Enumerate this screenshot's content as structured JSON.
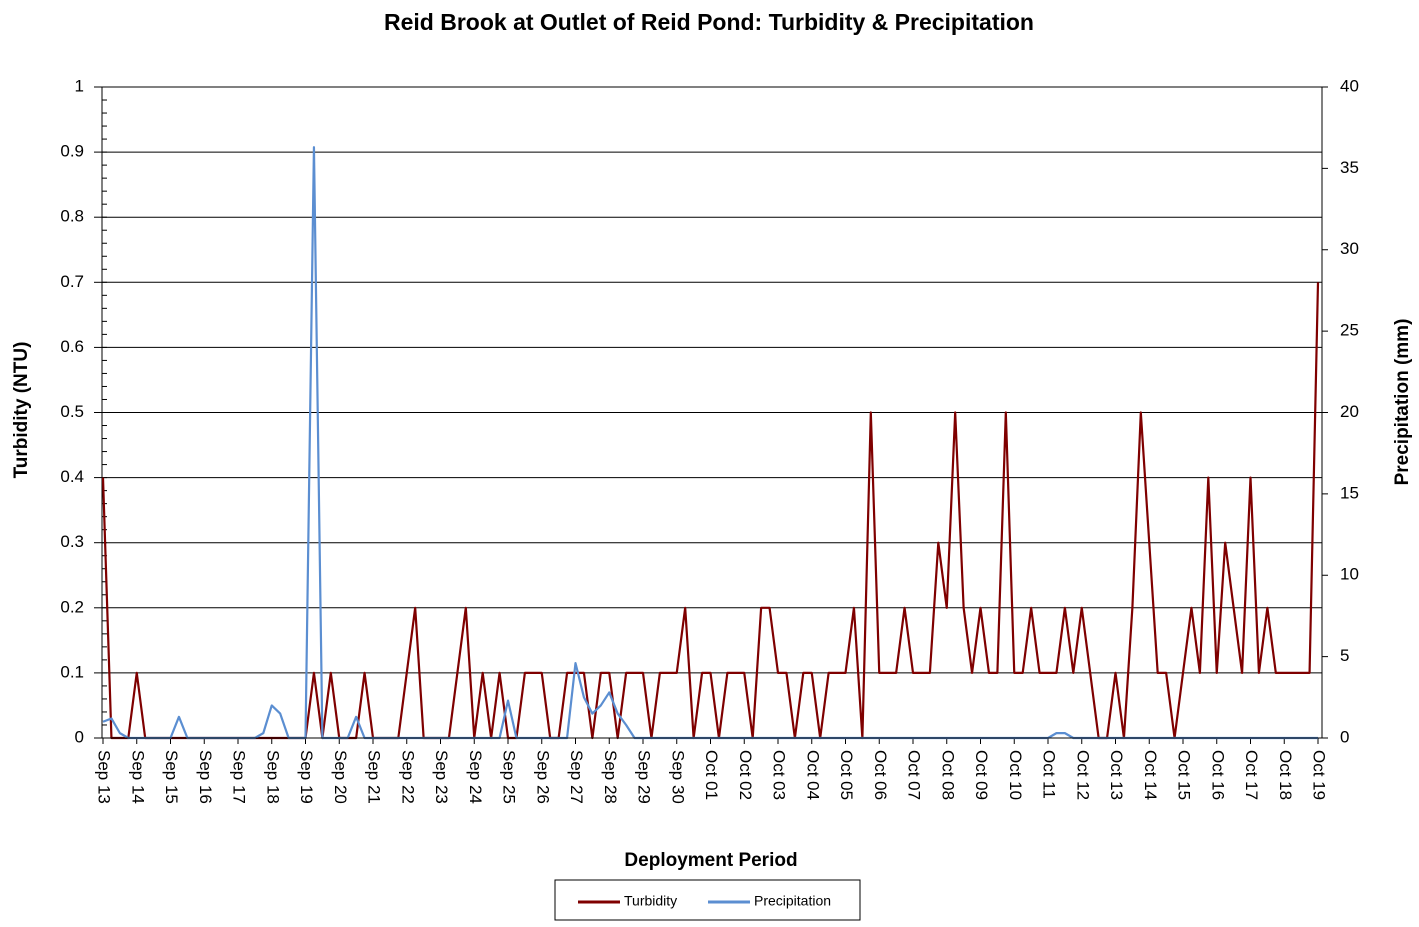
{
  "chart_data": {
    "type": "line",
    "title": "Reid Brook at Outlet of Reid Pond: Turbidity & Precipitation",
    "x_label": "Deployment Period",
    "y_label": "Turbidity (NTU)",
    "y2_label": "Precipitation (mm)",
    "categories": [
      "Sep 13",
      null,
      null,
      null,
      "Sep 14",
      null,
      null,
      null,
      "Sep 15",
      null,
      null,
      null,
      "Sep 16",
      null,
      null,
      null,
      "Sep 17",
      null,
      null,
      null,
      "Sep 18",
      null,
      null,
      null,
      "Sep 19",
      null,
      null,
      null,
      "Sep 20",
      null,
      null,
      null,
      "Sep 21",
      null,
      null,
      null,
      "Sep 22",
      null,
      null,
      null,
      "Sep 23",
      null,
      null,
      null,
      "Sep 24",
      null,
      null,
      null,
      "Sep 25",
      null,
      null,
      null,
      "Sep 26",
      null,
      null,
      null,
      "Sep 27",
      null,
      null,
      null,
      "Sep 28",
      null,
      null,
      null,
      "Sep 29",
      null,
      null,
      null,
      "Sep 30",
      null,
      null,
      null,
      "Oct 01",
      null,
      null,
      null,
      "Oct 02",
      null,
      null,
      null,
      "Oct 03",
      null,
      null,
      null,
      "Oct 04",
      null,
      null,
      null,
      "Oct 05",
      null,
      null,
      null,
      "Oct 06",
      null,
      null,
      null,
      "Oct 07",
      null,
      null,
      null,
      "Oct 08",
      null,
      null,
      null,
      "Oct 09",
      null,
      null,
      null,
      "Oct 10",
      null,
      null,
      null,
      "Oct 11",
      null,
      null,
      null,
      "Oct 12",
      null,
      null,
      null,
      "Oct 13",
      null,
      null,
      null,
      "Oct 14",
      null,
      null,
      null,
      "Oct 15",
      null,
      null,
      null,
      "Oct 16",
      null,
      null,
      null,
      "Oct 17",
      null,
      null,
      null,
      "Oct 18",
      null,
      null,
      null,
      "Oct 19"
    ],
    "series": [
      {
        "name": "Turbidity",
        "color": "#7f0000",
        "values": [
          0.4,
          0,
          0,
          0,
          0.1,
          0,
          0,
          0,
          0,
          0,
          0,
          0,
          0,
          0,
          0,
          0,
          0,
          0,
          0,
          0,
          0,
          0,
          0,
          0,
          0,
          0.1,
          0,
          0.1,
          0,
          0,
          0,
          0.1,
          0,
          0,
          0,
          0,
          0.1,
          0.2,
          0,
          0,
          0,
          0,
          0.1,
          0.2,
          0,
          0.1,
          0,
          0.1,
          0,
          0,
          0.1,
          0.1,
          0.1,
          0,
          0,
          0.1,
          0.1,
          0.1,
          0,
          0.1,
          0.1,
          0,
          0.1,
          0.1,
          0.1,
          0,
          0.1,
          0.1,
          0.1,
          0.2,
          0,
          0.1,
          0.1,
          0,
          0.1,
          0.1,
          0.1,
          0,
          0.2,
          0.2,
          0.1,
          0.1,
          0,
          0.1,
          0.1,
          0,
          0.1,
          0.1,
          0.1,
          0.2,
          0,
          0.5,
          0.1,
          0.1,
          0.1,
          0.2,
          0.1,
          0.1,
          0.1,
          0.3,
          0.2,
          0.5,
          0.2,
          0.1,
          0.2,
          0.1,
          0.1,
          0.5,
          0.1,
          0.1,
          0.2,
          0.1,
          0.1,
          0.1,
          0.2,
          0.1,
          0.2,
          0.1,
          0,
          0,
          0.1,
          0,
          0.2,
          0.5,
          0.3,
          0.1,
          0.1,
          0,
          0.1,
          0.2,
          0.1,
          0.4,
          0.1,
          0.3,
          0.2,
          0.1,
          0.4,
          0.1,
          0.2,
          0.1,
          0.1,
          0.1,
          0.1,
          0.1,
          0.7
        ]
      },
      {
        "name": "Precipitation",
        "color": "#5b8ed1",
        "axis": "y2",
        "values": [
          1.0,
          1.2,
          0.3,
          0,
          0,
          0,
          0,
          0,
          0,
          1.3,
          0,
          0,
          0,
          0,
          0,
          0,
          0,
          0,
          0,
          0.3,
          2.0,
          1.5,
          0,
          0,
          0,
          36.3,
          0,
          0,
          0,
          0,
          1.3,
          0,
          0,
          0,
          0,
          0,
          0,
          0,
          0,
          0,
          0,
          0,
          0,
          0,
          0,
          0,
          0,
          0,
          2.3,
          0,
          0,
          0,
          0,
          0,
          0,
          0,
          4.6,
          2.5,
          1.5,
          2.0,
          2.8,
          1.5,
          0.8,
          0,
          0,
          0,
          0,
          0,
          0,
          0,
          0,
          0,
          0,
          0,
          0,
          0,
          0,
          0,
          0,
          0,
          0,
          0,
          0,
          0,
          0,
          0,
          0,
          0,
          0,
          0,
          0,
          0,
          0,
          0,
          0,
          0,
          0,
          0,
          0,
          0,
          0,
          0,
          0,
          0,
          0,
          0,
          0,
          0,
          0,
          0,
          0,
          0,
          0,
          0.3,
          0.3,
          0,
          0,
          0,
          0,
          0,
          0,
          0,
          0,
          0,
          0,
          0,
          0,
          0,
          0,
          0,
          0,
          0,
          0,
          0,
          0,
          0,
          0,
          0,
          0,
          0,
          0,
          0,
          0,
          0,
          0
        ]
      }
    ],
    "ylim": [
      0,
      1
    ],
    "yticks": [
      0,
      0.1,
      0.2,
      0.3,
      0.4,
      0.5,
      0.6,
      0.7,
      0.8,
      0.9,
      1
    ],
    "y2lim": [
      0,
      40
    ],
    "y2ticks": [
      0,
      5,
      10,
      15,
      20,
      25,
      30,
      35,
      40
    ],
    "grid": true,
    "legend": "bottom"
  }
}
